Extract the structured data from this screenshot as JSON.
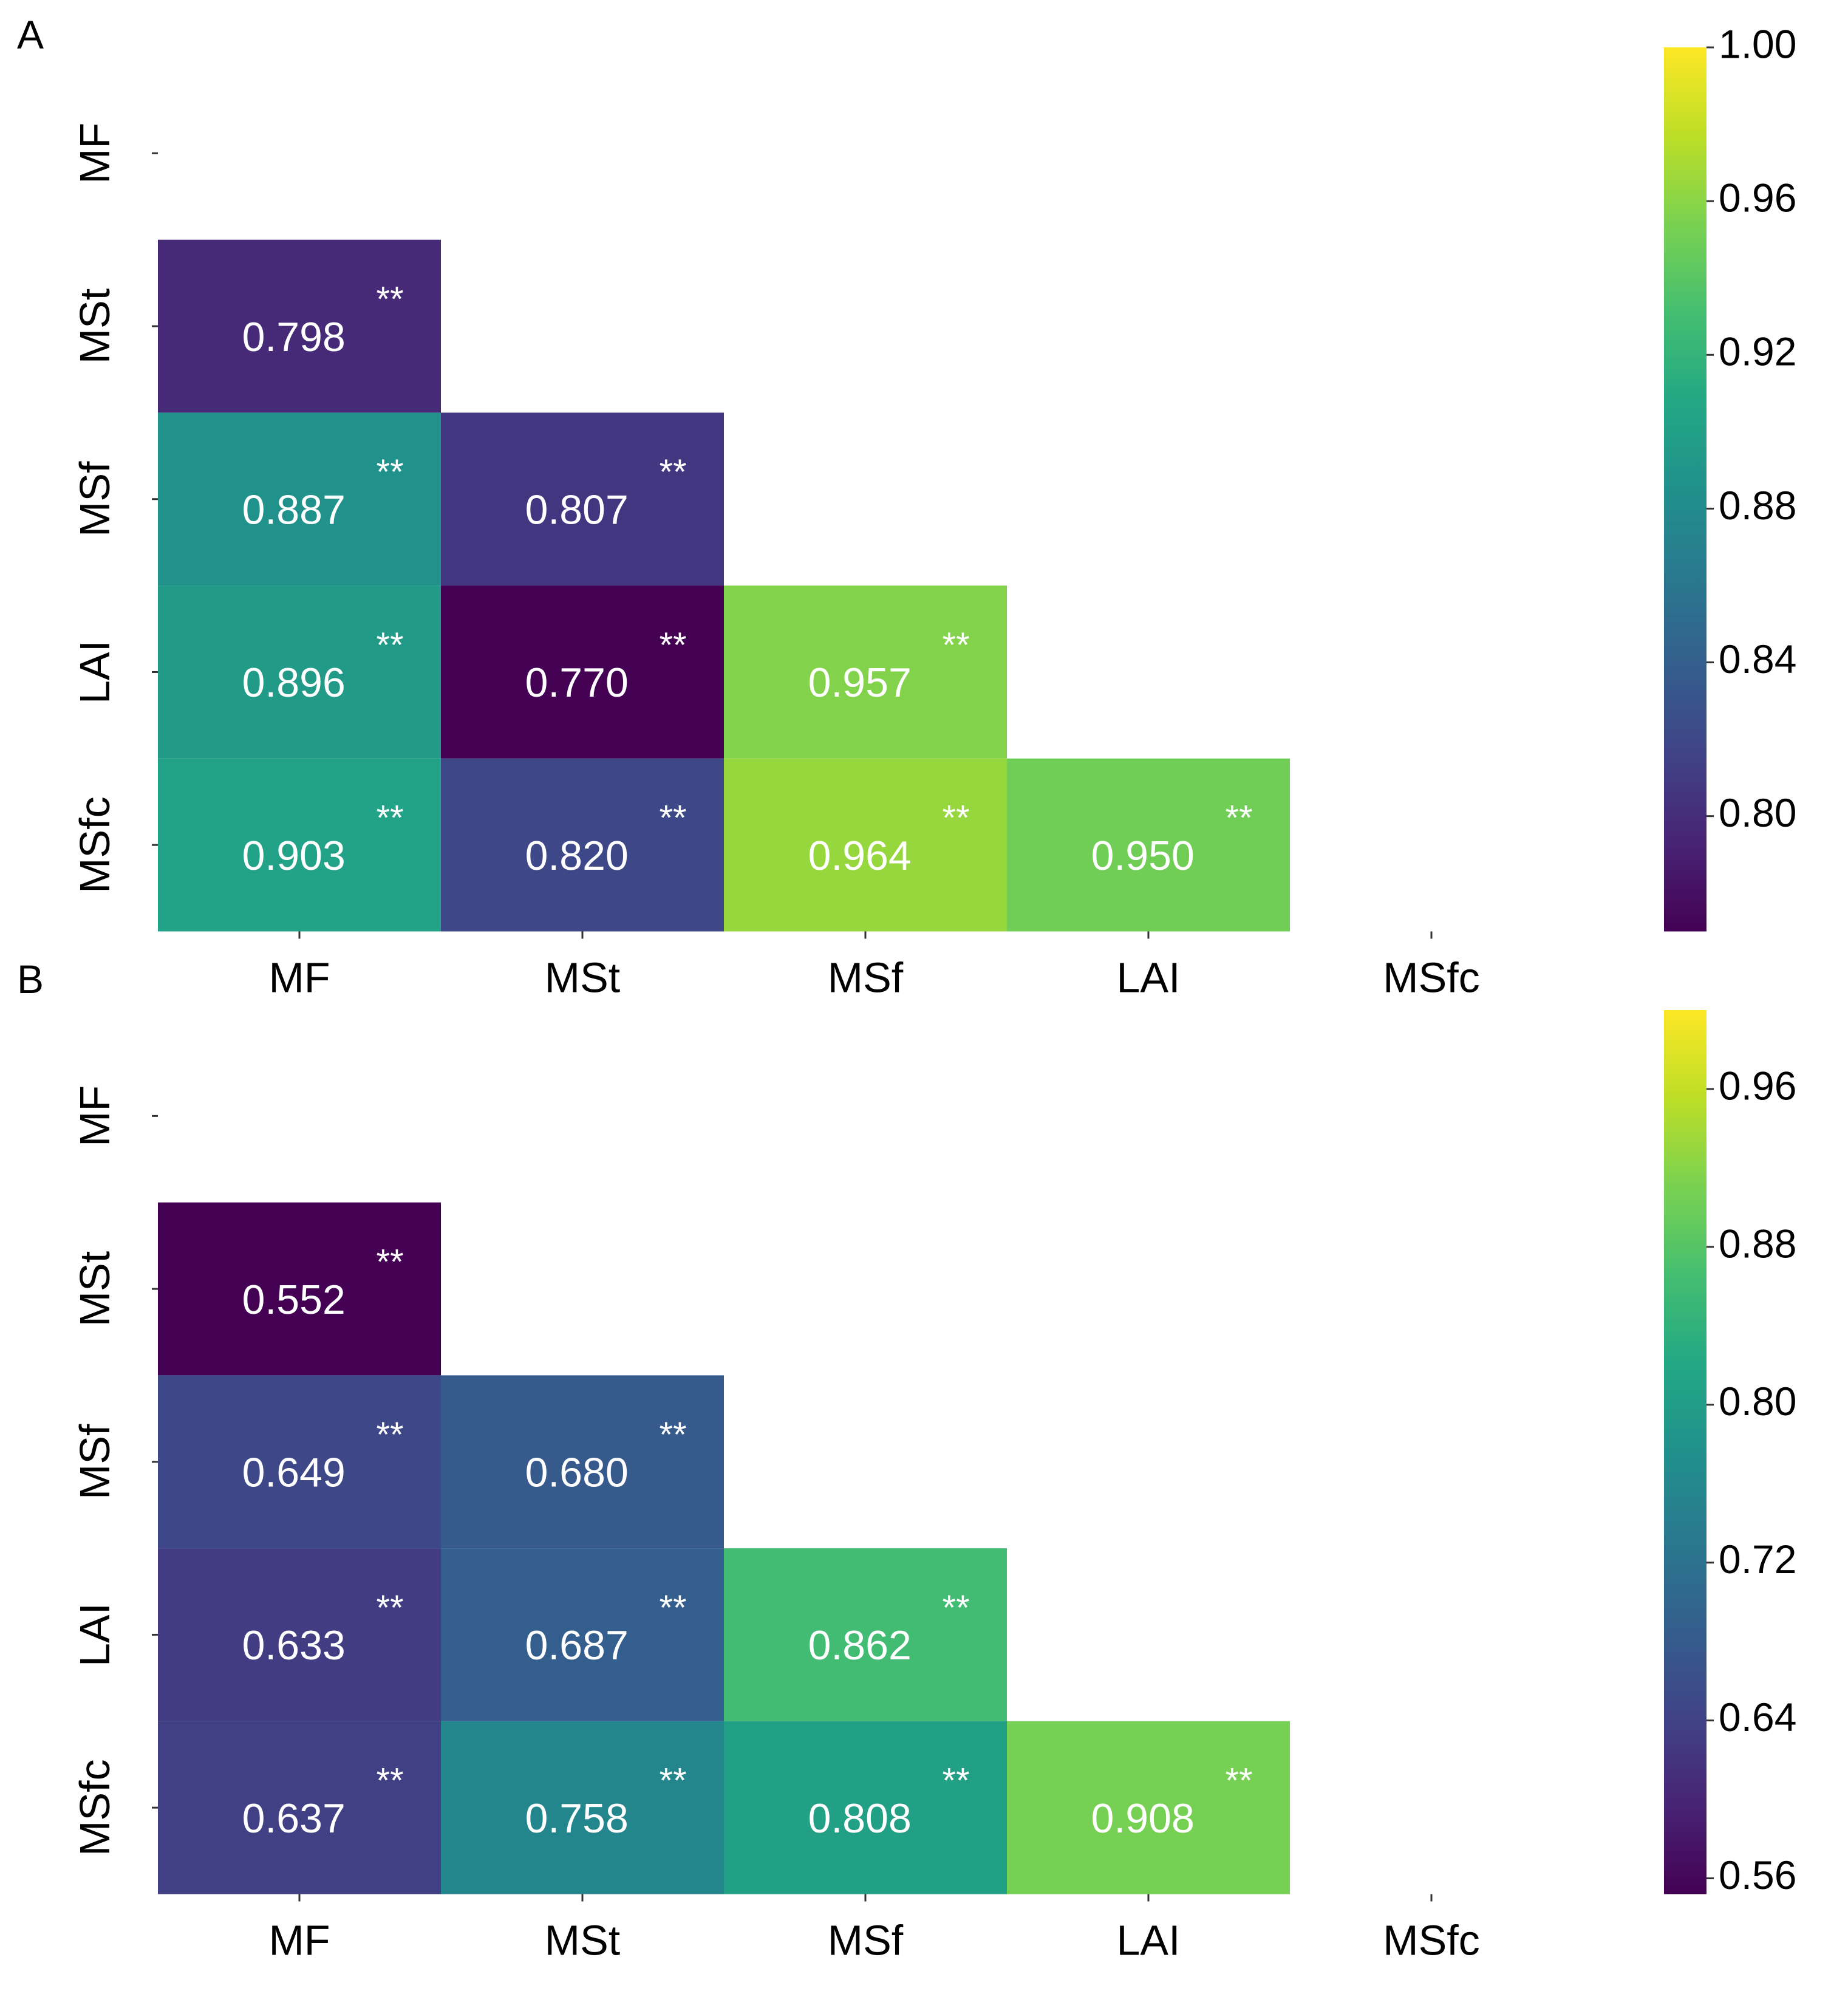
{
  "chart_data": [
    {
      "type": "heatmap",
      "panel_label": "A",
      "labels": [
        "MF",
        "MSt",
        "MSf",
        "LAI",
        "MSfc"
      ],
      "cells": [
        {
          "row": "MSt",
          "col": "MF",
          "value": 0.798,
          "text": "0.798",
          "sig": "**"
        },
        {
          "row": "MSf",
          "col": "MF",
          "value": 0.887,
          "text": "0.887",
          "sig": "**"
        },
        {
          "row": "MSf",
          "col": "MSt",
          "value": 0.807,
          "text": "0.807",
          "sig": "**"
        },
        {
          "row": "LAI",
          "col": "MF",
          "value": 0.896,
          "text": "0.896",
          "sig": "**"
        },
        {
          "row": "LAI",
          "col": "MSt",
          "value": 0.77,
          "text": "0.770",
          "sig": "**"
        },
        {
          "row": "LAI",
          "col": "MSf",
          "value": 0.957,
          "text": "0.957",
          "sig": "**"
        },
        {
          "row": "MSfc",
          "col": "MF",
          "value": 0.903,
          "text": "0.903",
          "sig": "**"
        },
        {
          "row": "MSfc",
          "col": "MSt",
          "value": 0.82,
          "text": "0.820",
          "sig": "**"
        },
        {
          "row": "MSfc",
          "col": "MSf",
          "value": 0.964,
          "text": "0.964",
          "sig": "**"
        },
        {
          "row": "MSfc",
          "col": "LAI",
          "value": 0.95,
          "text": "0.950",
          "sig": "**"
        }
      ],
      "colorbar": {
        "min": 0.77,
        "max": 1.0,
        "ticks": [
          1.0,
          0.96,
          0.92,
          0.88,
          0.84,
          0.8
        ],
        "tick_labels": [
          "1.00",
          "0.96",
          "0.92",
          "0.88",
          "0.84",
          "0.80"
        ]
      },
      "colormap": "viridis"
    },
    {
      "type": "heatmap",
      "panel_label": "B",
      "labels": [
        "MF",
        "MSt",
        "MSf",
        "LAI",
        "MSfc"
      ],
      "cells": [
        {
          "row": "MSt",
          "col": "MF",
          "value": 0.552,
          "text": "0.552",
          "sig": "**"
        },
        {
          "row": "MSf",
          "col": "MF",
          "value": 0.649,
          "text": "0.649",
          "sig": "**"
        },
        {
          "row": "MSf",
          "col": "MSt",
          "value": 0.68,
          "text": "0.680",
          "sig": "**"
        },
        {
          "row": "LAI",
          "col": "MF",
          "value": 0.633,
          "text": "0.633",
          "sig": "**"
        },
        {
          "row": "LAI",
          "col": "MSt",
          "value": 0.687,
          "text": "0.687",
          "sig": "**"
        },
        {
          "row": "LAI",
          "col": "MSf",
          "value": 0.862,
          "text": "0.862",
          "sig": "**"
        },
        {
          "row": "MSfc",
          "col": "MF",
          "value": 0.637,
          "text": "0.637",
          "sig": "**"
        },
        {
          "row": "MSfc",
          "col": "MSt",
          "value": 0.758,
          "text": "0.758",
          "sig": "**"
        },
        {
          "row": "MSfc",
          "col": "MSf",
          "value": 0.808,
          "text": "0.808",
          "sig": "**"
        },
        {
          "row": "MSfc",
          "col": "LAI",
          "value": 0.908,
          "text": "0.908",
          "sig": "**"
        }
      ],
      "colorbar": {
        "min": 0.552,
        "max": 1.0,
        "ticks": [
          0.96,
          0.88,
          0.8,
          0.72,
          0.64,
          0.56
        ],
        "tick_labels": [
          "0.96",
          "0.88",
          "0.80",
          "0.72",
          "0.64",
          "0.56"
        ]
      },
      "colormap": "viridis"
    }
  ]
}
